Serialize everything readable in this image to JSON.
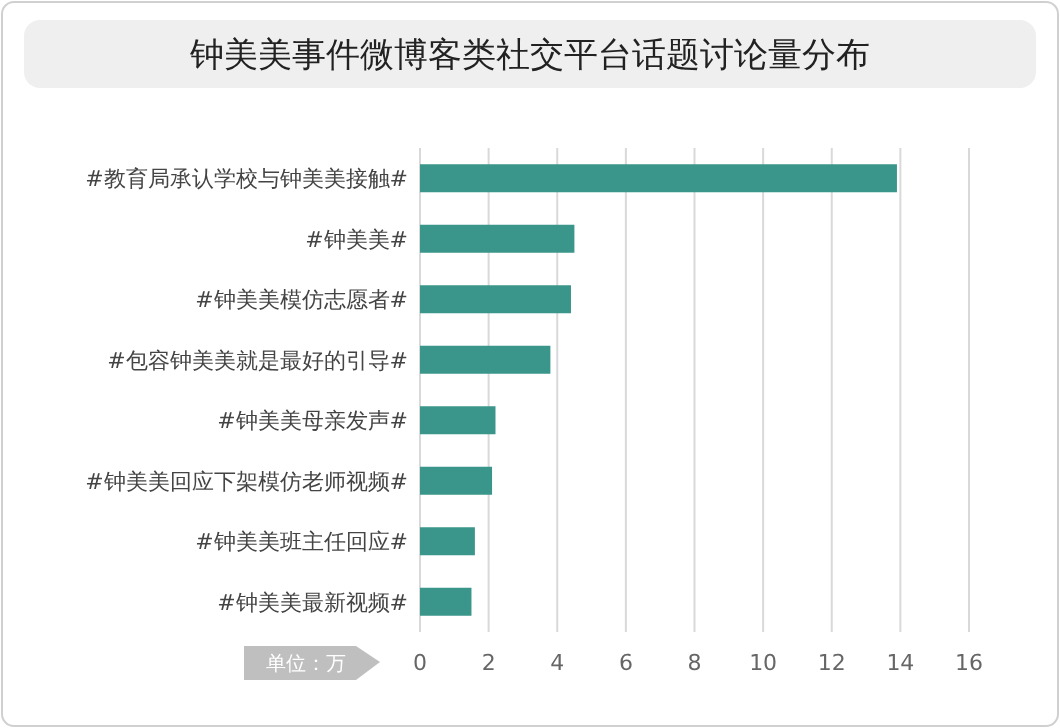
{
  "chart_data": {
    "type": "bar",
    "orientation": "horizontal",
    "title": "钟美美事件微博客类社交平台话题讨论量分布",
    "xlabel": "单位：万",
    "categories": [
      "#教育局承认学校与钟美美接触#",
      "#钟美美#",
      "#钟美美模仿志愿者#",
      "#包容钟美美就是最好的引导#",
      "#钟美美母亲发声#",
      "#钟美美回应下架模仿老师视频#",
      "#钟美美班主任回应#",
      "#钟美美最新视频#"
    ],
    "series": [
      {
        "color": "#3a968a",
        "values": [
          13.9,
          4.5,
          4.4,
          3.8,
          2.2,
          2.1,
          1.6,
          1.5
        ]
      }
    ],
    "xlim": [
      0,
      16
    ],
    "xticks": [
      0,
      2,
      4,
      6,
      8,
      10,
      12,
      14,
      16
    ],
    "grid": "x"
  }
}
